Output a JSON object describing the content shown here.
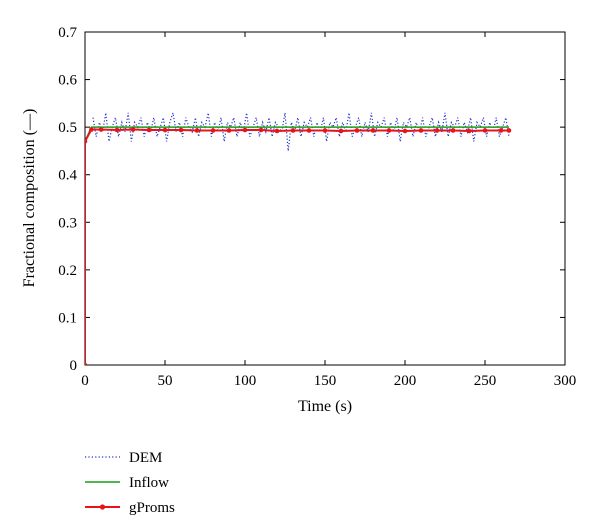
{
  "chart_data": {
    "type": "line",
    "xlabel": "Time (s)",
    "ylabel": "Fractional composition (—)",
    "xlim": [
      0,
      300
    ],
    "ylim": [
      0,
      0.7
    ],
    "xticks": [
      0,
      50,
      100,
      150,
      200,
      250,
      300
    ],
    "yticks": [
      0,
      0.1,
      0.2,
      0.3,
      0.4,
      0.5,
      0.6,
      0.7
    ],
    "grid": false,
    "legend_position": "below-left",
    "series": [
      {
        "name": "DEM",
        "style": "dotted",
        "color": "#2233cc",
        "x": [
          5,
          7,
          9,
          11,
          13,
          15,
          17,
          19,
          21,
          23,
          25,
          27,
          29,
          31,
          33,
          35,
          37,
          39,
          41,
          43,
          45,
          47,
          49,
          51,
          53,
          55,
          57,
          59,
          61,
          63,
          65,
          67,
          69,
          71,
          73,
          75,
          77,
          79,
          81,
          83,
          85,
          87,
          89,
          91,
          93,
          95,
          97,
          99,
          101,
          103,
          105,
          107,
          109,
          111,
          113,
          115,
          117,
          119,
          121,
          123,
          125,
          127,
          129,
          131,
          133,
          135,
          137,
          139,
          141,
          143,
          145,
          147,
          149,
          151,
          153,
          155,
          157,
          159,
          161,
          163,
          165,
          167,
          169,
          171,
          173,
          175,
          177,
          179,
          181,
          183,
          185,
          187,
          189,
          191,
          193,
          195,
          197,
          199,
          201,
          203,
          205,
          207,
          209,
          211,
          213,
          215,
          217,
          219,
          221,
          223,
          225,
          227,
          229,
          231,
          233,
          235,
          237,
          239,
          241,
          243,
          245,
          247,
          249,
          251,
          253,
          255,
          257,
          259,
          261,
          263,
          265
        ],
        "y": [
          0.52,
          0.48,
          0.51,
          0.49,
          0.53,
          0.47,
          0.5,
          0.52,
          0.48,
          0.51,
          0.49,
          0.53,
          0.47,
          0.51,
          0.5,
          0.52,
          0.48,
          0.51,
          0.49,
          0.52,
          0.48,
          0.5,
          0.52,
          0.47,
          0.51,
          0.53,
          0.49,
          0.51,
          0.48,
          0.52,
          0.5,
          0.49,
          0.52,
          0.48,
          0.51,
          0.5,
          0.53,
          0.48,
          0.51,
          0.49,
          0.52,
          0.47,
          0.51,
          0.5,
          0.52,
          0.48,
          0.51,
          0.49,
          0.53,
          0.48,
          0.5,
          0.52,
          0.48,
          0.51,
          0.49,
          0.52,
          0.48,
          0.51,
          0.5,
          0.49,
          0.53,
          0.45,
          0.51,
          0.49,
          0.52,
          0.48,
          0.51,
          0.5,
          0.52,
          0.48,
          0.51,
          0.49,
          0.52,
          0.47,
          0.51,
          0.5,
          0.52,
          0.48,
          0.51,
          0.49,
          0.53,
          0.48,
          0.5,
          0.52,
          0.48,
          0.51,
          0.49,
          0.53,
          0.48,
          0.51,
          0.5,
          0.52,
          0.48,
          0.51,
          0.49,
          0.52,
          0.47,
          0.51,
          0.5,
          0.52,
          0.48,
          0.51,
          0.49,
          0.52,
          0.48,
          0.5,
          0.52,
          0.48,
          0.51,
          0.49,
          0.53,
          0.48,
          0.51,
          0.5,
          0.52,
          0.48,
          0.51,
          0.49,
          0.52,
          0.47,
          0.51,
          0.5,
          0.52,
          0.48,
          0.51,
          0.49,
          0.52,
          0.48,
          0.5,
          0.52,
          0.48
        ]
      },
      {
        "name": "Inflow",
        "style": "solid",
        "color": "#1a9e1a",
        "x": [
          0,
          0,
          4,
          265
        ],
        "y": [
          0,
          0.47,
          0.5,
          0.5
        ]
      },
      {
        "name": "gProms",
        "style": "solid-marker",
        "color": "#e8141a",
        "x": [
          0,
          0,
          4,
          10,
          20,
          30,
          40,
          50,
          60,
          70,
          80,
          90,
          100,
          110,
          120,
          130,
          140,
          150,
          160,
          170,
          180,
          190,
          200,
          210,
          220,
          230,
          240,
          250,
          260,
          265
        ],
        "y": [
          0,
          0.47,
          0.495,
          0.495,
          0.494,
          0.495,
          0.494,
          0.494,
          0.494,
          0.493,
          0.493,
          0.493,
          0.494,
          0.494,
          0.492,
          0.493,
          0.493,
          0.493,
          0.492,
          0.493,
          0.493,
          0.493,
          0.492,
          0.493,
          0.493,
          0.493,
          0.492,
          0.493,
          0.493,
          0.493
        ]
      }
    ]
  }
}
